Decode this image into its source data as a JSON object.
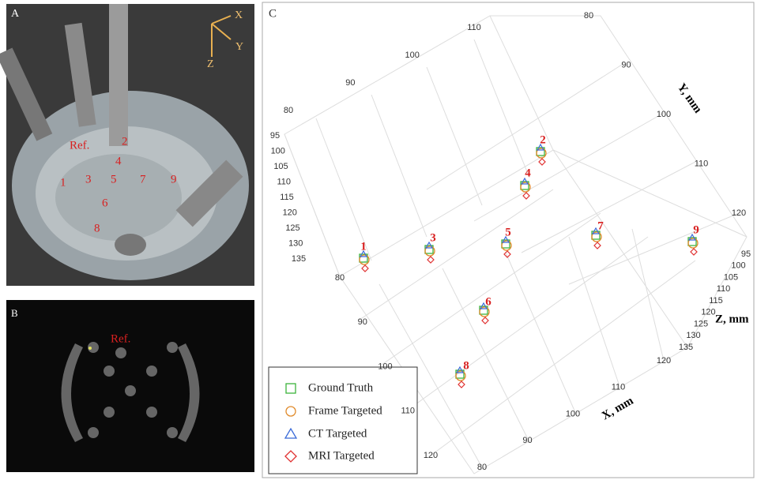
{
  "panel_a": {
    "label": "A",
    "axis_labels": [
      "X",
      "Y",
      "Z"
    ],
    "ref_label": "Ref.",
    "target_labels": [
      "1",
      "2",
      "3",
      "4",
      "5",
      "6",
      "7",
      "8",
      "9"
    ]
  },
  "panel_b": {
    "label": "B",
    "ref_label": "Ref."
  },
  "panel_c": {
    "label": "C",
    "x_axis_label": "X, mm",
    "y_axis_label": "Y, mm",
    "z_axis_label": "Z, mm",
    "ticks_top_left": [
      80,
      90,
      100,
      110
    ],
    "ticks_top_right": [
      80,
      90,
      100,
      110,
      120
    ],
    "ticks_left": [
      95,
      100,
      105,
      110,
      115,
      120,
      125,
      130,
      135
    ],
    "ticks_right": [
      95,
      100,
      105,
      110,
      115,
      120,
      125,
      130,
      135
    ],
    "ticks_bottom_left": [
      80,
      90,
      100,
      110,
      120
    ],
    "ticks_bottom_right": [
      120,
      110,
      100,
      90,
      80
    ],
    "point_labels": [
      "1",
      "2",
      "3",
      "4",
      "5",
      "6",
      "7",
      "8",
      "9"
    ],
    "legend": [
      "Ground Truth",
      "Frame Targeted",
      "CT Targeted",
      "MRI Targeted"
    ]
  }
}
